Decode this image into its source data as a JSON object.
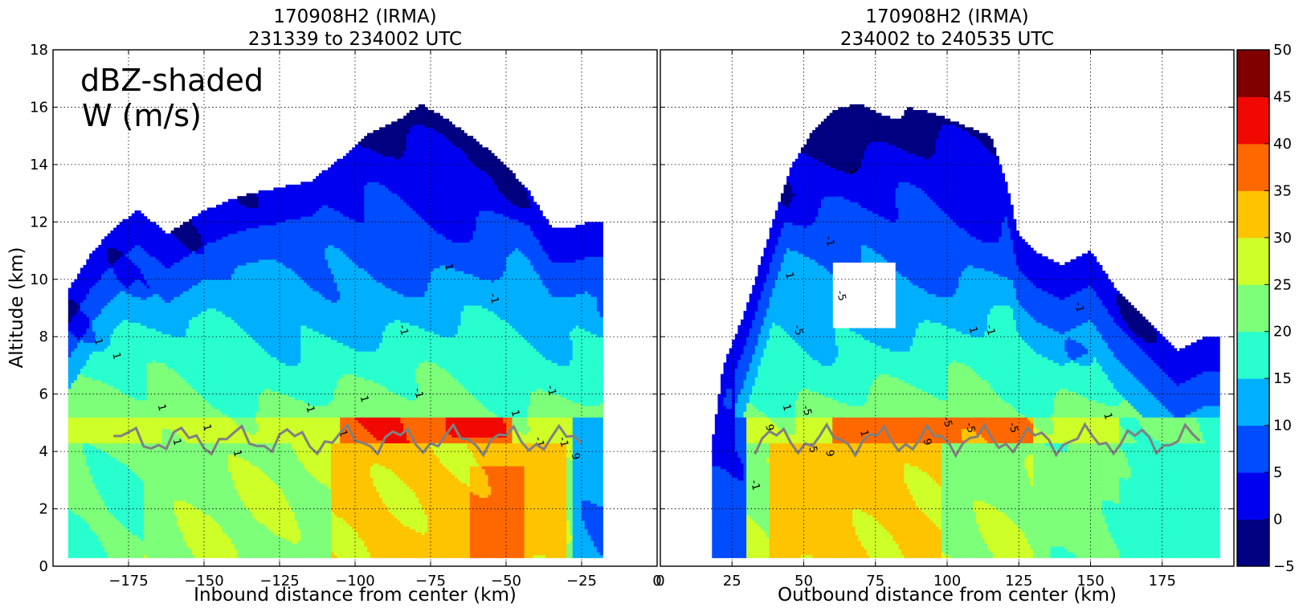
{
  "chart_data": {
    "type": "heatmap",
    "colorbar": {
      "levels": [
        -5,
        0,
        5,
        10,
        15,
        20,
        25,
        30,
        35,
        40,
        45,
        50
      ],
      "tick_labels": [
        "−5",
        "0",
        "5",
        "10",
        "15",
        "20",
        "25",
        "30",
        "35",
        "40",
        "45",
        "50"
      ],
      "colors": [
        "#000080",
        "#0000f1",
        "#004cff",
        "#00b0ff",
        "#29ffce",
        "#7dff7a",
        "#ceff29",
        "#ffc400",
        "#ff6800",
        "#f10800",
        "#800000"
      ]
    },
    "panels": [
      {
        "id": "inbound",
        "title_line1": "170908H2 (IRMA)",
        "title_line2": "231339 to 234002 UTC",
        "xlabel": "Inbound distance from center (km)",
        "ylabel": "Altitude (km)",
        "annotation_line1": "dBZ-shaded",
        "annotation_line2": "W (m/s)",
        "xlim": [
          -200,
          0
        ],
        "ylim": [
          0,
          18
        ],
        "xticks": [
          -175,
          -150,
          -125,
          -100,
          -75,
          -50,
          -25,
          0
        ],
        "xtick_labels": [
          "−175",
          "−150",
          "−125",
          "−100",
          "−75",
          "−50",
          "−25",
          "0"
        ],
        "yticks": [
          0,
          2,
          4,
          6,
          8,
          10,
          12,
          14,
          16,
          18
        ],
        "ytick_labels": [
          "0",
          "2",
          "4",
          "6",
          "8",
          "10",
          "12",
          "14",
          "16",
          "18"
        ],
        "grid": true,
        "echo_top_km": [
          [
            -195,
            9.6
          ],
          [
            -188,
            10.8
          ],
          [
            -180,
            11.8
          ],
          [
            -172,
            12.4
          ],
          [
            -162,
            11.6
          ],
          [
            -150,
            12.4
          ],
          [
            -138,
            12.9
          ],
          [
            -125,
            13.2
          ],
          [
            -115,
            13.4
          ],
          [
            -105,
            14.2
          ],
          [
            -95,
            15.1
          ],
          [
            -85,
            15.6
          ],
          [
            -78,
            16.1
          ],
          [
            -70,
            15.6
          ],
          [
            -62,
            15.0
          ],
          [
            -52,
            14.2
          ],
          [
            -42,
            13.0
          ],
          [
            -35,
            11.8
          ],
          [
            -28,
            11.8
          ],
          [
            -22,
            12.0
          ],
          [
            -18,
            12.0
          ]
        ],
        "data_x_range_km": [
          -195,
          -18
        ],
        "contour_labels": [
          {
            "x": -186,
            "y": 7.8,
            "text": "1"
          },
          {
            "x": -180,
            "y": 7.3,
            "text": "1"
          },
          {
            "x": -165,
            "y": 5.5,
            "text": "1"
          },
          {
            "x": -160,
            "y": 4.3,
            "text": "1"
          },
          {
            "x": -150,
            "y": 4.8,
            "text": "1"
          },
          {
            "x": -140,
            "y": 3.9,
            "text": "1"
          },
          {
            "x": -116,
            "y": 5.5,
            "text": "-1"
          },
          {
            "x": -105,
            "y": 4.6,
            "text": "1"
          },
          {
            "x": -98,
            "y": 5.8,
            "text": "1"
          },
          {
            "x": -80,
            "y": 6.0,
            "text": "-1"
          },
          {
            "x": -85,
            "y": 8.2,
            "text": "-1"
          },
          {
            "x": -70,
            "y": 10.4,
            "text": "1"
          },
          {
            "x": -55,
            "y": 9.3,
            "text": "-1"
          },
          {
            "x": -48,
            "y": 5.3,
            "text": "1"
          },
          {
            "x": -40,
            "y": 4.3,
            "text": "-1"
          },
          {
            "x": -36,
            "y": 6.1,
            "text": "-1"
          },
          {
            "x": -32,
            "y": 4.3,
            "text": "-1"
          },
          {
            "x": -28,
            "y": 3.8,
            "text": "9"
          }
        ]
      },
      {
        "id": "outbound",
        "title_line1": "170908H2 (IRMA)",
        "title_line2": "234002 to 240535 UTC",
        "xlabel": "Outbound distance from center (km)",
        "xlim": [
          0,
          200
        ],
        "ylim": [
          0,
          18
        ],
        "xticks": [
          0,
          25,
          50,
          75,
          100,
          125,
          150,
          175
        ],
        "xtick_labels": [
          "0",
          "25",
          "50",
          "75",
          "100",
          "125",
          "150",
          "175"
        ],
        "yticks": [
          0,
          2,
          4,
          6,
          8,
          10,
          12,
          14,
          16,
          18
        ],
        "grid": true,
        "echo_top_km": [
          [
            18,
            4.2
          ],
          [
            22,
            7.0
          ],
          [
            30,
            9.0
          ],
          [
            38,
            11.6
          ],
          [
            45,
            13.8
          ],
          [
            52,
            15.0
          ],
          [
            60,
            15.9
          ],
          [
            72,
            16.2
          ],
          [
            85,
            16.0
          ],
          [
            95,
            15.8
          ],
          [
            105,
            15.4
          ],
          [
            115,
            15.0
          ],
          [
            120,
            13.6
          ],
          [
            125,
            11.5
          ],
          [
            130,
            11.0
          ],
          [
            140,
            10.5
          ],
          [
            150,
            11.0
          ],
          [
            160,
            9.5
          ],
          [
            170,
            8.5
          ],
          [
            180,
            7.5
          ],
          [
            190,
            8.0
          ],
          [
            195,
            8.0
          ]
        ],
        "data_x_range_km": [
          18,
          195
        ],
        "contour_labels": [
          {
            "x": 32,
            "y": 2.8,
            "text": "-1"
          },
          {
            "x": 37,
            "y": 4.8,
            "text": "9"
          },
          {
            "x": 43,
            "y": 5.5,
            "text": "1"
          },
          {
            "x": 50,
            "y": 5.4,
            "text": "-5"
          },
          {
            "x": 52,
            "y": 4.1,
            "text": "-5"
          },
          {
            "x": 58,
            "y": 3.9,
            "text": "9"
          },
          {
            "x": 47,
            "y": 8.2,
            "text": "-5"
          },
          {
            "x": 44,
            "y": 10.1,
            "text": "1"
          },
          {
            "x": 62,
            "y": 9.4,
            "text": "-5"
          },
          {
            "x": 70,
            "y": 4.6,
            "text": "1"
          },
          {
            "x": 92,
            "y": 4.3,
            "text": "9"
          },
          {
            "x": 99,
            "y": 5.0,
            "text": "-5"
          },
          {
            "x": 107,
            "y": 4.8,
            "text": "-5"
          },
          {
            "x": 122,
            "y": 4.8,
            "text": "-5"
          },
          {
            "x": 108,
            "y": 8.2,
            "text": "1"
          },
          {
            "x": 114,
            "y": 8.2,
            "text": "-1"
          },
          {
            "x": 58,
            "y": 11.3,
            "text": "-1"
          },
          {
            "x": 66,
            "y": 13.8,
            "text": "-1"
          },
          {
            "x": 145,
            "y": 9.0,
            "text": "-1"
          },
          {
            "x": 155,
            "y": 5.2,
            "text": "1"
          }
        ]
      }
    ]
  }
}
